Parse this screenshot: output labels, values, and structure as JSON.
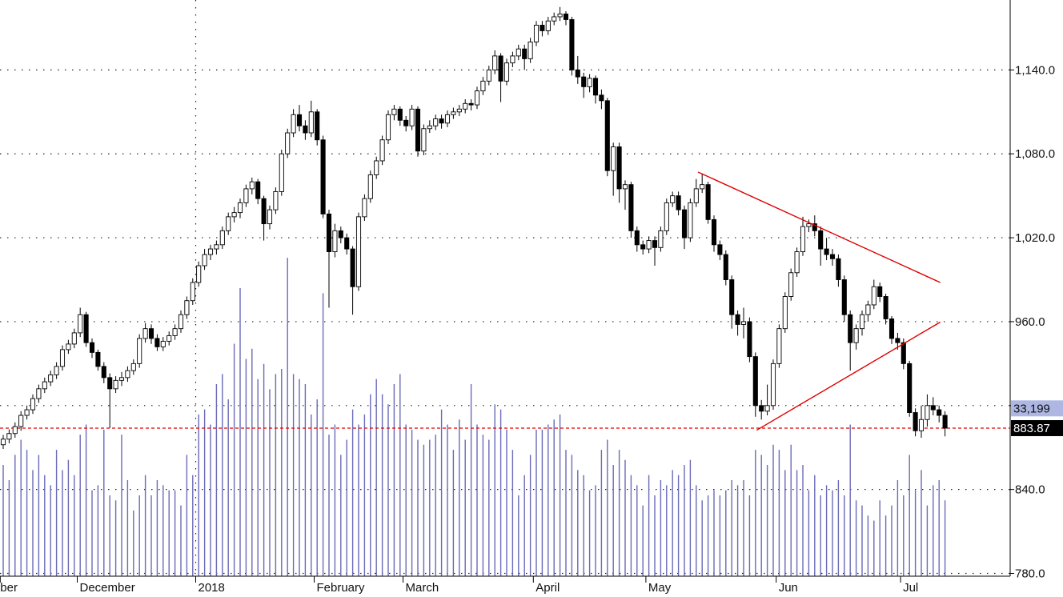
{
  "chart_data": {
    "type": "candlestick",
    "categories": [
      "November",
      null,
      null,
      null,
      null,
      null,
      null,
      null,
      null,
      null,
      null,
      null,
      null,
      "December",
      null,
      null,
      null,
      null,
      null,
      null,
      null,
      null,
      null,
      null,
      null,
      null,
      null,
      null,
      null,
      null,
      null,
      null,
      null,
      "2018",
      null,
      null,
      null,
      null,
      null,
      null,
      null,
      null,
      null,
      null,
      null,
      null,
      null,
      null,
      null,
      null,
      null,
      null,
      null,
      "February",
      null,
      null,
      null,
      null,
      null,
      null,
      null,
      null,
      null,
      null,
      null,
      null,
      null,
      null,
      "March",
      null,
      null,
      null,
      null,
      null,
      null,
      null,
      null,
      null,
      null,
      null,
      null,
      null,
      null,
      null,
      null,
      null,
      null,
      null,
      null,
      null,
      "April",
      null,
      null,
      null,
      null,
      null,
      null,
      null,
      null,
      null,
      null,
      null,
      null,
      null,
      null,
      null,
      null,
      null,
      null,
      "May",
      null,
      null,
      null,
      null,
      null,
      null,
      null,
      null,
      null,
      null,
      null,
      null,
      null,
      null,
      null,
      null,
      null,
      null,
      null,
      null,
      null,
      "Jun",
      null,
      null,
      null,
      null,
      null,
      null,
      null,
      null,
      null,
      null,
      null,
      null,
      null,
      null,
      null,
      null,
      null,
      null,
      null,
      null,
      "Jul",
      null,
      null,
      null,
      null,
      null,
      null,
      null
    ],
    "open": [
      872,
      876,
      880,
      885,
      893,
      897,
      905,
      912,
      917,
      922,
      928,
      940,
      944,
      952,
      965,
      945,
      938,
      928,
      920,
      912,
      918,
      920,
      925,
      930,
      948,
      955,
      948,
      942,
      946,
      950,
      955,
      965,
      975,
      988,
      1000,
      1008,
      1012,
      1015,
      1025,
      1035,
      1038,
      1045,
      1055,
      1060,
      1048,
      1030,
      1040,
      1053,
      1080,
      1095,
      1108,
      1100,
      1095,
      1110,
      1090,
      1037,
      1010,
      1025,
      1020,
      1012,
      985,
      1035,
      1048,
      1065,
      1075,
      1090,
      1108,
      1112,
      1104,
      1100,
      1112,
      1082,
      1098,
      1100,
      1105,
      1102,
      1108,
      1110,
      1112,
      1116,
      1115,
      1125,
      1132,
      1140,
      1150,
      1132,
      1145,
      1150,
      1155,
      1148,
      1160,
      1172,
      1168,
      1175,
      1178,
      1180,
      1176,
      1140,
      1135,
      1128,
      1134,
      1122,
      1118,
      1068,
      1085,
      1055,
      1058,
      1025,
      1015,
      1012,
      1018,
      1013,
      1025,
      1045,
      1050,
      1040,
      1020,
      1045,
      1055,
      1058,
      1033,
      1015,
      1008,
      990,
      965,
      958,
      960,
      935,
      900,
      896,
      900,
      930,
      955,
      978,
      995,
      1010,
      1028,
      1030,
      1025,
      1012,
      1008,
      1005,
      990,
      965,
      945,
      955,
      965,
      972,
      985,
      978,
      962,
      948,
      945,
      930,
      895,
      882,
      890,
      900,
      897,
      893
    ],
    "high": [
      879,
      883,
      888,
      896,
      900,
      908,
      915,
      920,
      925,
      931,
      943,
      947,
      955,
      970,
      967,
      948,
      940,
      931,
      923,
      921,
      924,
      928,
      933,
      951,
      959,
      958,
      951,
      949,
      953,
      958,
      968,
      978,
      991,
      1003,
      1012,
      1015,
      1018,
      1028,
      1038,
      1042,
      1048,
      1058,
      1063,
      1062,
      1050,
      1043,
      1056,
      1083,
      1098,
      1112,
      1115,
      1104,
      1118,
      1112,
      1093,
      1040,
      1030,
      1028,
      1023,
      1014,
      1038,
      1051,
      1068,
      1078,
      1093,
      1111,
      1115,
      1114,
      1107,
      1115,
      1114,
      1101,
      1104,
      1108,
      1108,
      1111,
      1113,
      1115,
      1119,
      1119,
      1128,
      1135,
      1143,
      1154,
      1152,
      1148,
      1153,
      1158,
      1158,
      1163,
      1175,
      1175,
      1178,
      1181,
      1185,
      1182,
      1178,
      1150,
      1138,
      1137,
      1136,
      1126,
      1120,
      1088,
      1088,
      1061,
      1060,
      1028,
      1018,
      1021,
      1021,
      1028,
      1048,
      1053,
      1053,
      1043,
      1048,
      1062,
      1066,
      1060,
      1036,
      1018,
      1011,
      993,
      968,
      970,
      963,
      938,
      904,
      915,
      933,
      958,
      981,
      998,
      1013,
      1035,
      1033,
      1036,
      1028,
      1020,
      1012,
      1008,
      993,
      968,
      958,
      968,
      975,
      990,
      988,
      980,
      964,
      952,
      948,
      932,
      898,
      900,
      908,
      906,
      900,
      896
    ],
    "low": [
      869,
      873,
      877,
      882,
      890,
      894,
      902,
      909,
      914,
      919,
      925,
      937,
      941,
      949,
      942,
      934,
      925,
      916,
      884,
      909,
      914,
      917,
      922,
      927,
      945,
      944,
      939,
      939,
      943,
      947,
      952,
      962,
      972,
      985,
      997,
      1004,
      1008,
      1012,
      1022,
      1031,
      1034,
      1042,
      1051,
      1044,
      1018,
      1026,
      1037,
      1050,
      1077,
      1092,
      1096,
      1090,
      1092,
      1086,
      1034,
      970,
      1006,
      1016,
      1008,
      965,
      982,
      1032,
      1045,
      1062,
      1072,
      1087,
      1104,
      1100,
      1096,
      1097,
      1078,
      1079,
      1095,
      1097,
      1098,
      1099,
      1105,
      1107,
      1109,
      1111,
      1112,
      1122,
      1129,
      1137,
      1117,
      1129,
      1142,
      1147,
      1140,
      1145,
      1157,
      1164,
      1165,
      1172,
      1175,
      1172,
      1136,
      1130,
      1120,
      1124,
      1116,
      1112,
      1064,
      1050,
      1045,
      1040,
      1020,
      1010,
      1008,
      1009,
      1000,
      1010,
      1022,
      1042,
      1036,
      1012,
      1017,
      1042,
      1052,
      1030,
      1010,
      1004,
      986,
      955,
      950,
      948,
      931,
      892,
      890,
      893,
      897,
      927,
      952,
      975,
      992,
      1007,
      1024,
      1021,
      1000,
      1004,
      1000,
      985,
      960,
      925,
      940,
      950,
      960,
      969,
      974,
      958,
      944,
      940,
      926,
      892,
      878,
      877,
      885,
      893,
      888,
      878
    ],
    "close": [
      876,
      880,
      885,
      893,
      897,
      905,
      912,
      917,
      922,
      928,
      940,
      944,
      952,
      965,
      945,
      938,
      928,
      920,
      912,
      918,
      920,
      925,
      930,
      948,
      955,
      948,
      942,
      946,
      950,
      955,
      965,
      975,
      988,
      1000,
      1008,
      1012,
      1015,
      1025,
      1035,
      1038,
      1045,
      1055,
      1060,
      1048,
      1030,
      1040,
      1053,
      1080,
      1095,
      1108,
      1100,
      1095,
      1110,
      1090,
      1037,
      1010,
      1025,
      1020,
      1012,
      985,
      1035,
      1048,
      1065,
      1075,
      1090,
      1108,
      1112,
      1104,
      1100,
      1112,
      1082,
      1098,
      1100,
      1105,
      1102,
      1108,
      1110,
      1112,
      1116,
      1115,
      1125,
      1132,
      1140,
      1150,
      1132,
      1145,
      1150,
      1155,
      1148,
      1160,
      1172,
      1168,
      1175,
      1178,
      1180,
      1176,
      1140,
      1135,
      1128,
      1134,
      1122,
      1118,
      1068,
      1085,
      1055,
      1058,
      1025,
      1015,
      1012,
      1018,
      1013,
      1025,
      1045,
      1050,
      1040,
      1020,
      1045,
      1055,
      1058,
      1033,
      1015,
      1008,
      990,
      965,
      958,
      960,
      935,
      900,
      896,
      900,
      930,
      955,
      978,
      995,
      1010,
      1028,
      1030,
      1025,
      1012,
      1008,
      1005,
      990,
      965,
      945,
      955,
      965,
      972,
      985,
      978,
      962,
      948,
      945,
      930,
      895,
      882,
      890,
      900,
      897,
      893,
      883.87
    ],
    "volume": [
      22000,
      19000,
      24000,
      27000,
      25000,
      21000,
      24000,
      20000,
      18000,
      25000,
      21000,
      23000,
      20000,
      28000,
      30000,
      17000,
      18000,
      29000,
      16000,
      15000,
      28000,
      19000,
      13000,
      16000,
      20000,
      16000,
      19000,
      18000,
      17000,
      17000,
      14000,
      24000,
      20000,
      32000,
      33000,
      30000,
      38000,
      40000,
      35000,
      46000,
      57000,
      43000,
      45000,
      39000,
      42000,
      37000,
      40000,
      41000,
      63000,
      40000,
      39000,
      38000,
      32000,
      35000,
      56000,
      28000,
      30000,
      24000,
      27000,
      33000,
      30000,
      32000,
      36000,
      39000,
      36000,
      34000,
      38000,
      40000,
      30000,
      29000,
      27000,
      26000,
      27000,
      28000,
      33000,
      30000,
      25000,
      31000,
      27000,
      38000,
      30000,
      28000,
      27000,
      34000,
      33000,
      29000,
      25000,
      16000,
      20000,
      24000,
      29000,
      29000,
      30000,
      31000,
      32000,
      25000,
      24000,
      21000,
      20000,
      17000,
      18000,
      25000,
      27000,
      22000,
      25000,
      23000,
      20000,
      18000,
      14000,
      20000,
      16000,
      19000,
      18000,
      21000,
      20000,
      22000,
      23000,
      18000,
      15000,
      16000,
      17000,
      16000,
      17000,
      19000,
      18000,
      19000,
      16000,
      25000,
      24000,
      22000,
      26000,
      25000,
      21000,
      26000,
      21000,
      22000,
      17000,
      20000,
      16000,
      18000,
      17000,
      19000,
      16000,
      30000,
      15000,
      14000,
      12000,
      11000,
      15000,
      12000,
      14000,
      19000,
      16000,
      24000,
      17000,
      21000,
      14000,
      18000,
      19000,
      15000
    ],
    "up_color": "#ffffff",
    "down_color": "#000000",
    "volume_color": "#6a6ab8",
    "ylim": [
      778,
      1190
    ],
    "yticks": [
      {
        "value": 780,
        "label": "780.0"
      },
      {
        "value": 840,
        "label": "840.0"
      },
      {
        "value": 900,
        "label": "900.0"
      },
      {
        "value": 960,
        "label": "960.0"
      },
      {
        "value": 1020,
        "label": "1,020.0"
      },
      {
        "value": 1080,
        "label": "1,080.0"
      },
      {
        "value": 1140,
        "label": "1,140.0"
      }
    ],
    "y2lim": [
      0,
      114000
    ],
    "grid": true,
    "last_price": 883.87,
    "volume_marker": {
      "value": 33199,
      "label": "33,199"
    },
    "reference_line_color": "#e00000",
    "trendlines": [
      {
        "color": "#e00000",
        "points": [
          [
            117.3,
            1067
          ],
          [
            158.2,
            988
          ]
        ]
      },
      {
        "color": "#e00000",
        "points": [
          [
            127.2,
            882.4
          ],
          [
            158.2,
            959.7
          ]
        ]
      }
    ]
  }
}
